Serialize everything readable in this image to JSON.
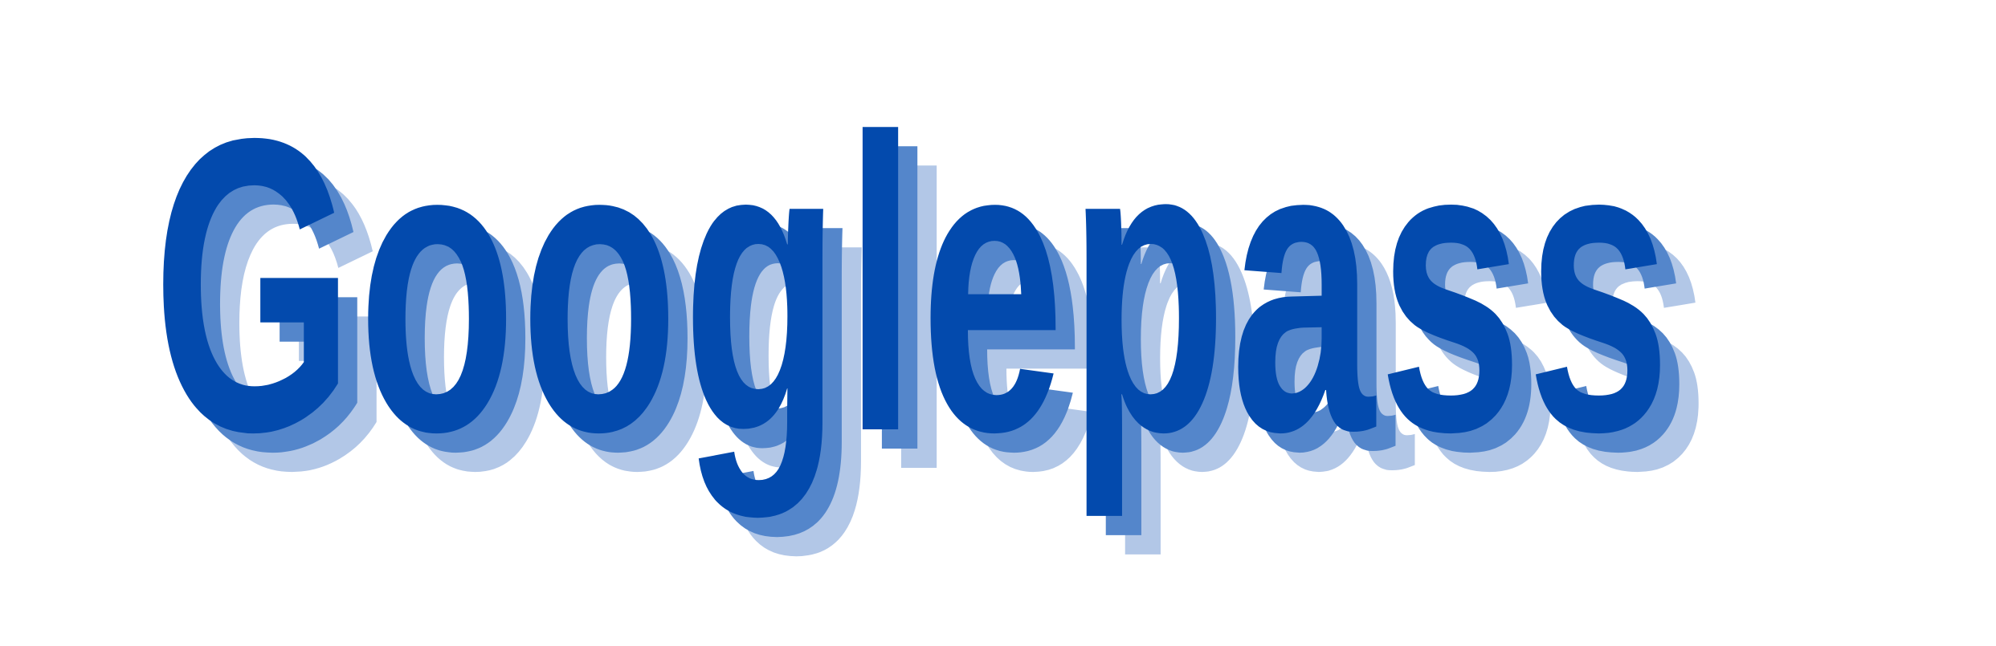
{
  "logo": {
    "text": "Googlepass",
    "colors": {
      "front": "#034aad",
      "mid_shadow": "#5486cb",
      "back_shadow": "#b2c7e7",
      "background": "#ffffff"
    }
  }
}
